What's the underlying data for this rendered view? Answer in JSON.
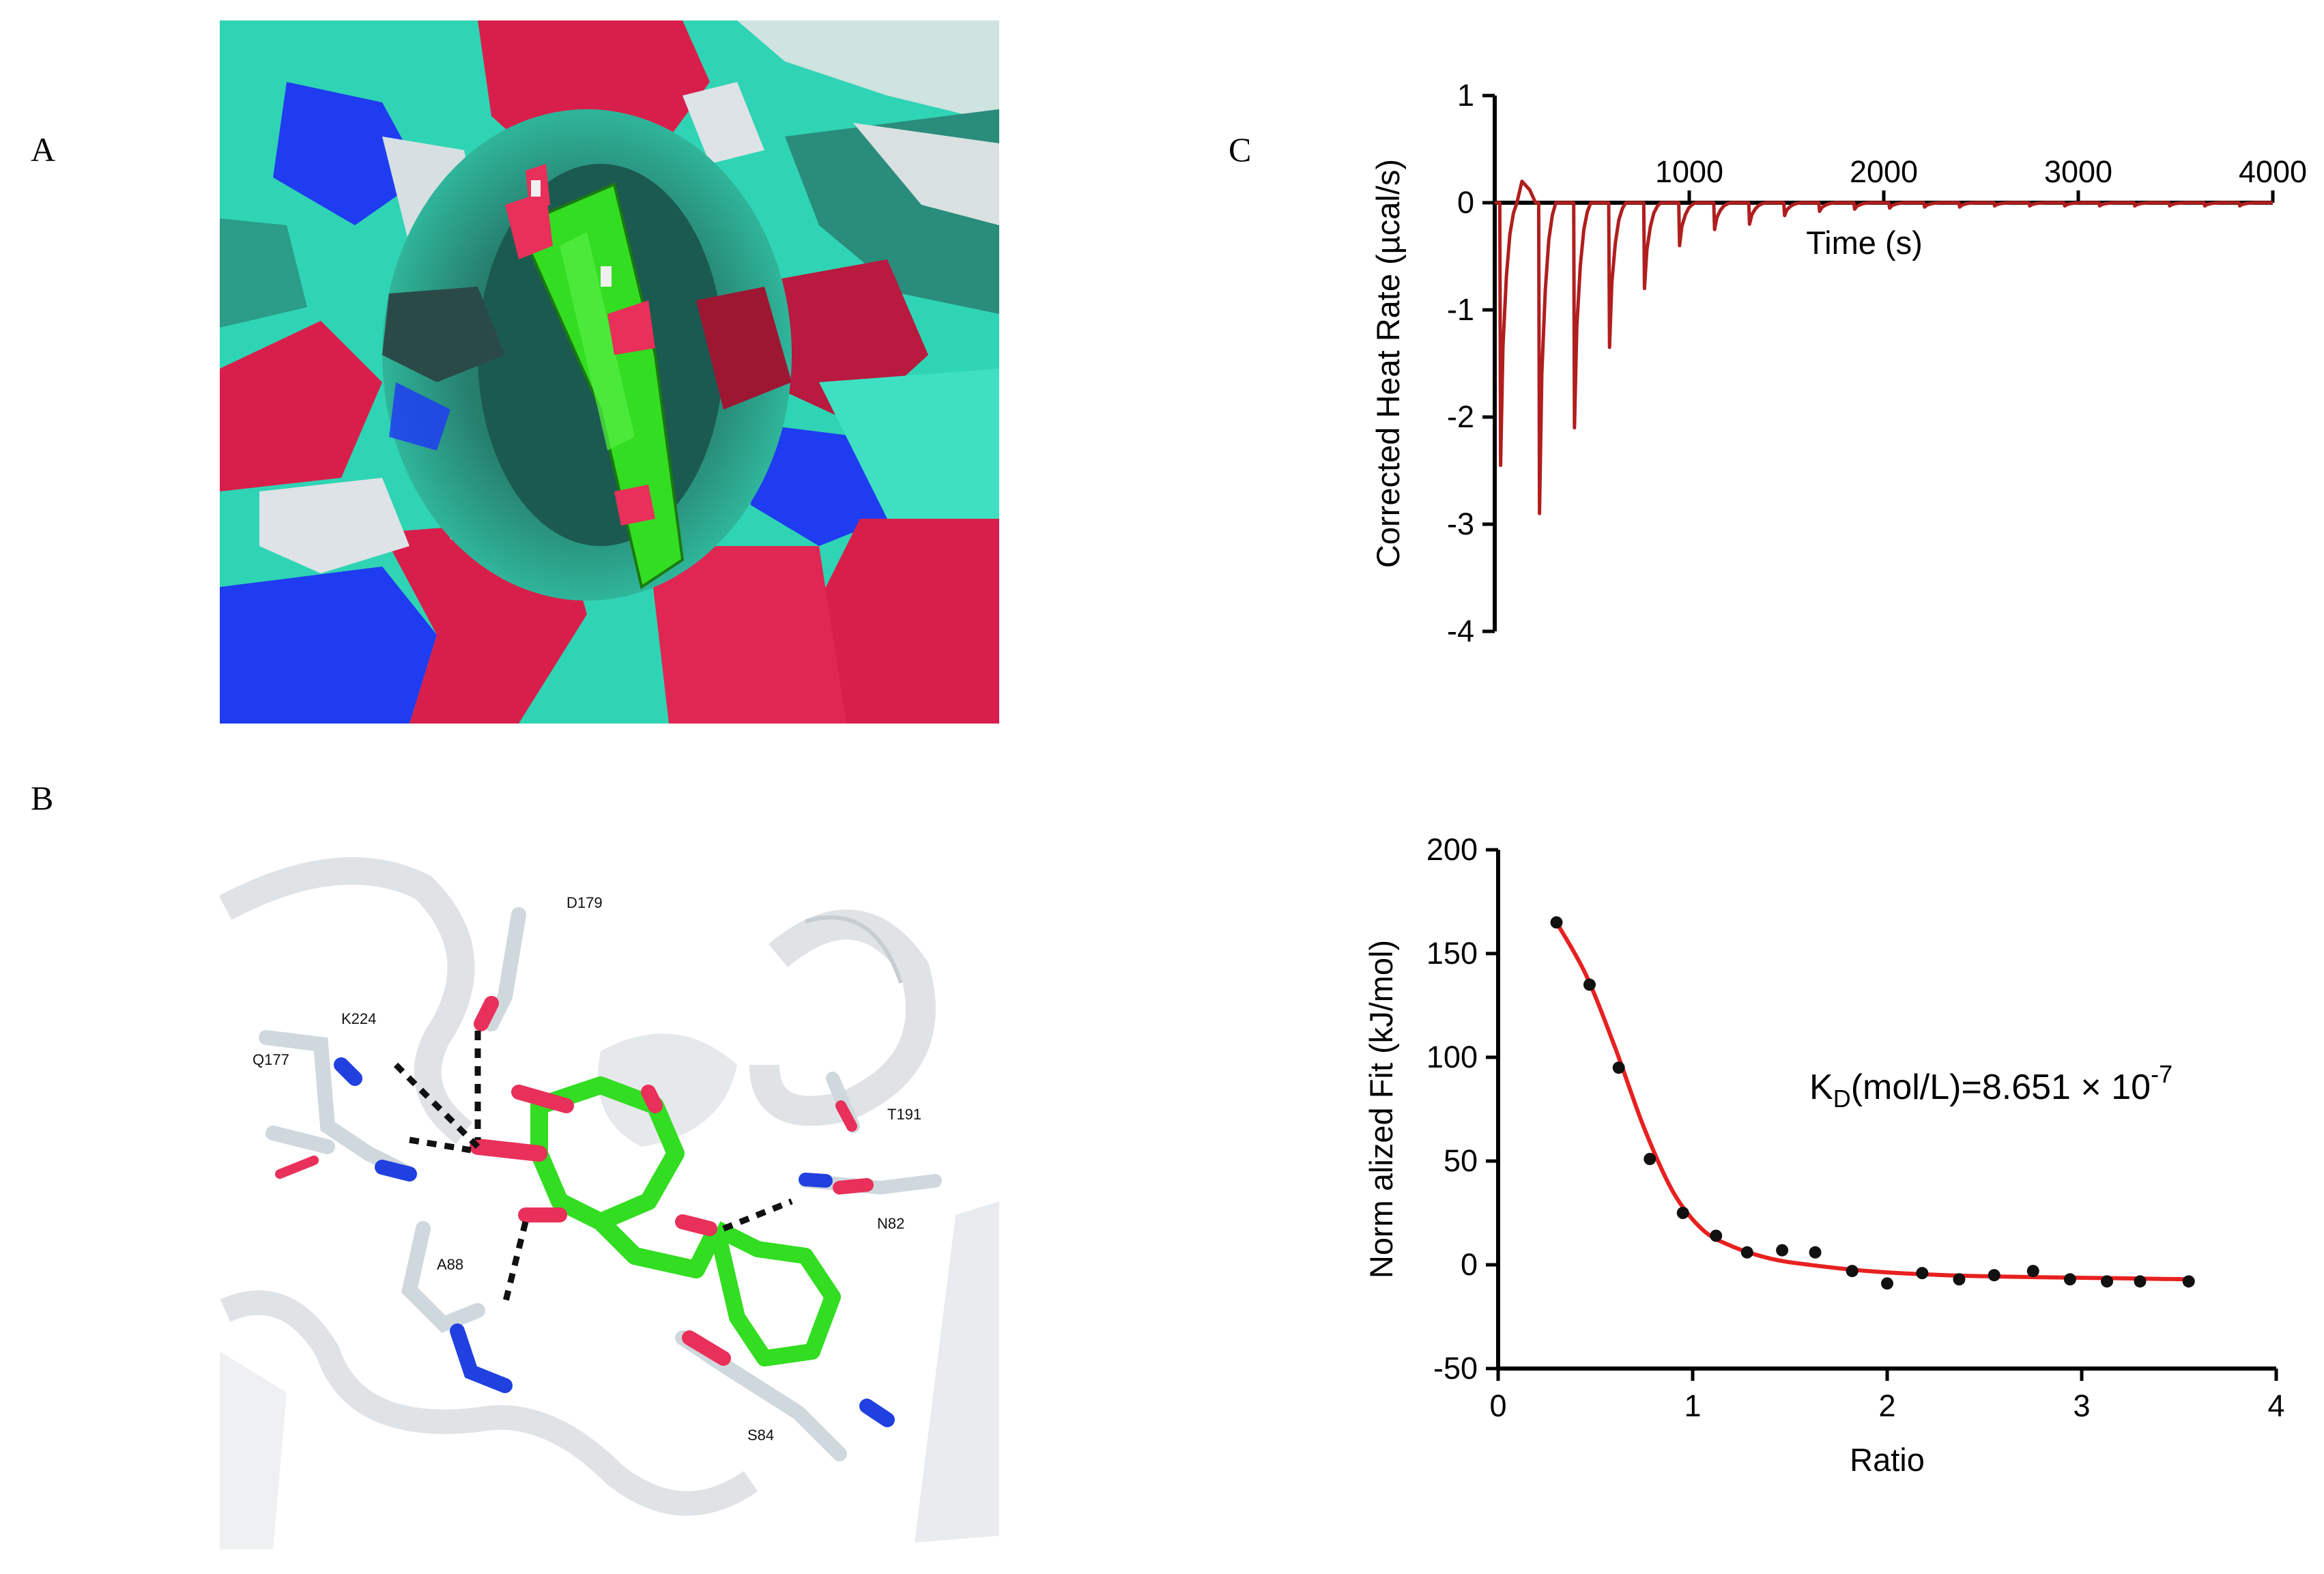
{
  "panels": {
    "A": {
      "letter": "A"
    },
    "B": {
      "letter": "B",
      "residues": [
        "D179",
        "K224",
        "Q177",
        "T191",
        "N82",
        "A88",
        "S84"
      ]
    },
    "C": {
      "letter": "C"
    }
  },
  "colors": {
    "ligand": "#33dd22",
    "oxygen": "#e8305a",
    "nitrogen": "#2040e0",
    "carbon_protein": "#cfd8dc",
    "surface_teal": "#2fd4b4",
    "surface_red": "#d81f4b",
    "surface_blue": "#1f3cf0",
    "itc_trace": "#b01e1e",
    "fit_line": "#e82020",
    "points": "#111111"
  },
  "chart_data": [
    {
      "type": "line",
      "xlabel": "Time (s)",
      "ylabel": "Corrected Heat Rate (µcal/s)",
      "xlim": [
        0,
        4000
      ],
      "ylim": [
        -4,
        1
      ],
      "xticks": [
        "1000",
        "2000",
        "3000",
        "4000"
      ],
      "yticks": [
        "1",
        "0",
        "-1",
        "-2",
        "-3",
        "-4"
      ],
      "peaks": [
        {
          "time": 30,
          "min": -2.45
        },
        {
          "time": 230,
          "min": -2.9
        },
        {
          "time": 410,
          "min": -2.1
        },
        {
          "time": 590,
          "min": -1.35
        },
        {
          "time": 770,
          "min": -0.8
        },
        {
          "time": 950,
          "min": -0.4
        },
        {
          "time": 1130,
          "min": -0.25
        },
        {
          "time": 1310,
          "min": -0.2
        },
        {
          "time": 1490,
          "min": -0.12
        },
        {
          "time": 1670,
          "min": -0.08
        },
        {
          "time": 1850,
          "min": -0.06
        },
        {
          "time": 2030,
          "min": -0.05
        },
        {
          "time": 2210,
          "min": -0.04
        },
        {
          "time": 2390,
          "min": -0.04
        },
        {
          "time": 2570,
          "min": -0.03
        },
        {
          "time": 2750,
          "min": -0.03
        },
        {
          "time": 2930,
          "min": -0.03
        },
        {
          "time": 3110,
          "min": -0.03
        },
        {
          "time": 3290,
          "min": -0.03
        },
        {
          "time": 3470,
          "min": -0.03
        },
        {
          "time": 3650,
          "min": -0.03
        },
        {
          "time": 3830,
          "min": -0.03
        }
      ]
    },
    {
      "type": "scatter",
      "xlabel": "Ratio",
      "ylabel": "Norm alized Fit (kJ/mol)",
      "xlim": [
        0,
        4
      ],
      "ylim": [
        -50,
        200
      ],
      "xticks": [
        "0",
        "1",
        "2",
        "3",
        "4"
      ],
      "yticks": [
        "200",
        "150",
        "100",
        "50",
        "0",
        "-50"
      ],
      "points": [
        [
          0.3,
          165
        ],
        [
          0.47,
          135
        ],
        [
          0.62,
          95
        ],
        [
          0.78,
          51
        ],
        [
          0.95,
          25
        ],
        [
          1.12,
          14
        ],
        [
          1.28,
          6
        ],
        [
          1.46,
          7
        ],
        [
          1.63,
          6
        ],
        [
          1.82,
          -3
        ],
        [
          2.0,
          -9
        ],
        [
          2.18,
          -4
        ],
        [
          2.37,
          -7
        ],
        [
          2.55,
          -5
        ],
        [
          2.75,
          -3
        ],
        [
          2.94,
          -7
        ],
        [
          3.13,
          -8
        ],
        [
          3.3,
          -8
        ],
        [
          3.55,
          -8
        ]
      ],
      "fit": [
        [
          0.3,
          165
        ],
        [
          0.45,
          140
        ],
        [
          0.6,
          105
        ],
        [
          0.75,
          66
        ],
        [
          0.9,
          35
        ],
        [
          1.05,
          17
        ],
        [
          1.2,
          9
        ],
        [
          1.4,
          3
        ],
        [
          1.6,
          0
        ],
        [
          1.9,
          -3
        ],
        [
          2.3,
          -5
        ],
        [
          2.8,
          -6
        ],
        [
          3.2,
          -6.5
        ],
        [
          3.55,
          -7
        ]
      ],
      "annotation": {
        "main": "K",
        "sub": "D",
        "rest": "(mol/L)=8.651 × 10",
        "sup": "-7"
      }
    }
  ]
}
